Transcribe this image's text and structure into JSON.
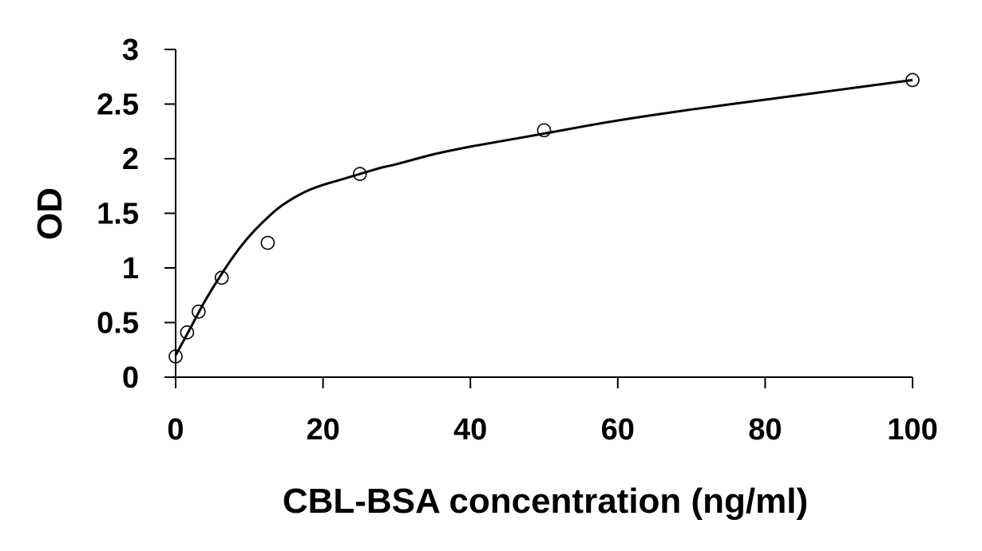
{
  "chart_data": {
    "type": "scatter",
    "title": "",
    "xlabel": "CBL-BSA concentration (ng/ml)",
    "ylabel": "OD",
    "xlim": [
      0,
      100
    ],
    "ylim": [
      0,
      3
    ],
    "x_ticks": [
      0,
      20,
      40,
      60,
      80,
      100
    ],
    "x_tick_labels": [
      "0",
      "20",
      "40",
      "60",
      "80",
      "100"
    ],
    "y_ticks": [
      0,
      0.5,
      1,
      1.5,
      2,
      2.5,
      3
    ],
    "y_tick_labels": [
      "0",
      "0.5",
      "1",
      "1.5",
      "2",
      "2.5",
      "3"
    ],
    "grid": false,
    "legend": "none",
    "series": [
      {
        "marker": "open-circle",
        "x": [
          0,
          1.56,
          3.12,
          6.25,
          12.5,
          25,
          50,
          100
        ],
        "y": [
          0.19,
          0.41,
          0.6,
          0.91,
          1.23,
          1.86,
          2.26,
          2.72
        ]
      }
    ],
    "fit_curve": {
      "style": "solid",
      "color": "#000000",
      "x": [
        0,
        2,
        4,
        6,
        8,
        10,
        12,
        14,
        16,
        18,
        20,
        22,
        24,
        26,
        28,
        30,
        35,
        40,
        45,
        50,
        60,
        70,
        80,
        90,
        100
      ],
      "y": [
        0.2,
        0.45,
        0.7,
        0.92,
        1.12,
        1.29,
        1.43,
        1.55,
        1.64,
        1.71,
        1.76,
        1.8,
        1.84,
        1.88,
        1.92,
        1.95,
        2.04,
        2.11,
        2.17,
        2.23,
        2.35,
        2.45,
        2.54,
        2.63,
        2.72
      ]
    }
  }
}
